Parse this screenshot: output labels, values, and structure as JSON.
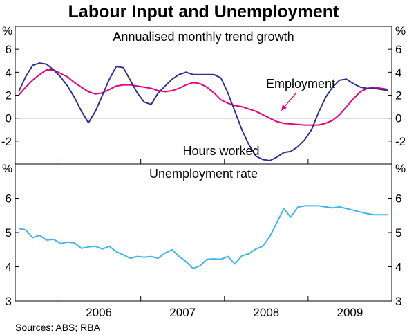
{
  "title": "Labour Input and Unemployment",
  "source": "Sources: ABS; RBA",
  "colors": {
    "employment": "#e6007e",
    "hours": "#2e3192",
    "unemployment": "#41b6e6",
    "frame": "#000000",
    "grid": "#000000"
  },
  "chart_data": [
    {
      "type": "line",
      "title": "Annualised monthly trend growth",
      "unit": "%",
      "ylim": [
        -4,
        8
      ],
      "yticks": [
        -2,
        0,
        2,
        4,
        6
      ],
      "zero_line": true,
      "x_range": [
        "2005-07",
        "2009-12"
      ],
      "x_year_labels": [
        "2006",
        "2007",
        "2008",
        "2009"
      ],
      "x": [
        "2005-07",
        "2005-08",
        "2005-09",
        "2005-10",
        "2005-11",
        "2005-12",
        "2006-01",
        "2006-02",
        "2006-03",
        "2006-04",
        "2006-05",
        "2006-06",
        "2006-07",
        "2006-08",
        "2006-09",
        "2006-10",
        "2006-11",
        "2006-12",
        "2007-01",
        "2007-02",
        "2007-03",
        "2007-04",
        "2007-05",
        "2007-06",
        "2007-07",
        "2007-08",
        "2007-09",
        "2007-10",
        "2007-11",
        "2007-12",
        "2008-01",
        "2008-02",
        "2008-03",
        "2008-04",
        "2008-05",
        "2008-06",
        "2008-07",
        "2008-08",
        "2008-09",
        "2008-10",
        "2008-11",
        "2008-12",
        "2009-01",
        "2009-02",
        "2009-03",
        "2009-04",
        "2009-05",
        "2009-06",
        "2009-07",
        "2009-08",
        "2009-09",
        "2009-10",
        "2009-11",
        "2009-12"
      ],
      "series": [
        {
          "name": "Employment",
          "color_key": "employment",
          "values": [
            2.0,
            2.7,
            3.3,
            3.8,
            4.2,
            4.2,
            3.9,
            3.6,
            3.1,
            2.7,
            2.3,
            2.1,
            2.2,
            2.5,
            2.8,
            2.9,
            2.9,
            2.8,
            2.7,
            2.6,
            2.4,
            2.3,
            2.4,
            2.6,
            2.9,
            3.1,
            3.0,
            2.7,
            2.2,
            1.6,
            1.3,
            1.1,
            1.0,
            0.8,
            0.6,
            0.3,
            0.0,
            -0.3,
            -0.45,
            -0.5,
            -0.55,
            -0.6,
            -0.6,
            -0.6,
            -0.45,
            -0.2,
            0.3,
            1.0,
            1.7,
            2.3,
            2.6,
            2.7,
            2.6,
            2.5
          ]
        },
        {
          "name": "Hours worked",
          "color_key": "hours",
          "values": [
            2.3,
            3.6,
            4.6,
            4.8,
            4.7,
            4.2,
            3.6,
            2.8,
            1.8,
            0.6,
            -0.4,
            0.6,
            2.0,
            3.4,
            4.5,
            4.4,
            3.3,
            2.2,
            1.4,
            1.2,
            2.2,
            2.8,
            3.4,
            3.8,
            4.0,
            3.8,
            3.8,
            3.8,
            3.8,
            3.5,
            2.2,
            0.6,
            -1.0,
            -2.3,
            -3.3,
            -3.6,
            -3.7,
            -3.4,
            -3.0,
            -2.9,
            -2.5,
            -1.9,
            -1.0,
            0.5,
            1.8,
            2.7,
            3.3,
            3.4,
            3.0,
            2.7,
            2.6,
            2.6,
            2.5,
            2.4
          ]
        }
      ],
      "annotations": [
        {
          "text": "Employment",
          "series": "Employment"
        },
        {
          "text": "Hours worked",
          "series": "Hours worked"
        }
      ]
    },
    {
      "type": "line",
      "title": "Unemployment rate",
      "unit": "%",
      "ylim": [
        3,
        7
      ],
      "yticks": [
        3,
        4,
        5,
        6
      ],
      "x_range": [
        "2005-07",
        "2009-12"
      ],
      "x_year_labels": [
        "2006",
        "2007",
        "2008",
        "2009"
      ],
      "x": [
        "2005-07",
        "2005-08",
        "2005-09",
        "2005-10",
        "2005-11",
        "2005-12",
        "2006-01",
        "2006-02",
        "2006-03",
        "2006-04",
        "2006-05",
        "2006-06",
        "2006-07",
        "2006-08",
        "2006-09",
        "2006-10",
        "2006-11",
        "2006-12",
        "2007-01",
        "2007-02",
        "2007-03",
        "2007-04",
        "2007-05",
        "2007-06",
        "2007-07",
        "2007-08",
        "2007-09",
        "2007-10",
        "2007-11",
        "2007-12",
        "2008-01",
        "2008-02",
        "2008-03",
        "2008-04",
        "2008-05",
        "2008-06",
        "2008-07",
        "2008-08",
        "2008-09",
        "2008-10",
        "2008-11",
        "2008-12",
        "2009-01",
        "2009-02",
        "2009-03",
        "2009-04",
        "2009-05",
        "2009-06",
        "2009-07",
        "2009-08",
        "2009-09",
        "2009-10",
        "2009-11",
        "2009-12"
      ],
      "series": [
        {
          "name": "Unemployment rate",
          "color_key": "unemployment",
          "values": [
            5.12,
            5.08,
            4.85,
            4.92,
            4.78,
            4.8,
            4.68,
            4.72,
            4.7,
            4.54,
            4.58,
            4.6,
            4.52,
            4.6,
            4.44,
            4.35,
            4.25,
            4.3,
            4.28,
            4.3,
            4.25,
            4.4,
            4.5,
            4.3,
            4.15,
            3.95,
            4.03,
            4.22,
            4.23,
            4.22,
            4.3,
            4.08,
            4.32,
            4.38,
            4.52,
            4.6,
            4.88,
            5.28,
            5.7,
            5.45,
            5.74,
            5.78,
            5.78,
            5.78,
            5.75,
            5.72,
            5.75,
            5.7,
            5.65,
            5.6,
            5.55,
            5.52,
            5.52,
            5.52
          ]
        }
      ]
    }
  ]
}
